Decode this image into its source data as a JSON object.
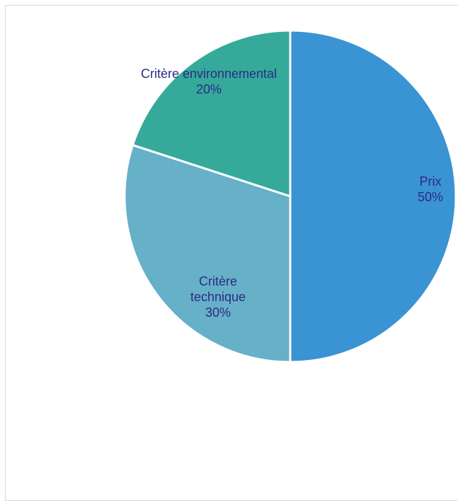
{
  "chart_data": {
    "type": "pie",
    "title": "",
    "slices": [
      {
        "name": "Prix",
        "value": 50,
        "label_lines": [
          "Prix"
        ],
        "percent_label": "50%",
        "color": "#3a93d2"
      },
      {
        "name": "Critère technique",
        "value": 30,
        "label_lines": [
          "Critère",
          "technique"
        ],
        "percent_label": "30%",
        "color": "#66b0c8"
      },
      {
        "name": "Critère environnemental",
        "value": 20,
        "label_lines": [
          "Critère environnemental"
        ],
        "percent_label": "20%",
        "color": "#35aa9b"
      }
    ],
    "legend": "none",
    "label_color": "#2e2a84",
    "slice_border_color": "#ffffff",
    "start_angle_deg": 0,
    "direction": "clockwise"
  }
}
